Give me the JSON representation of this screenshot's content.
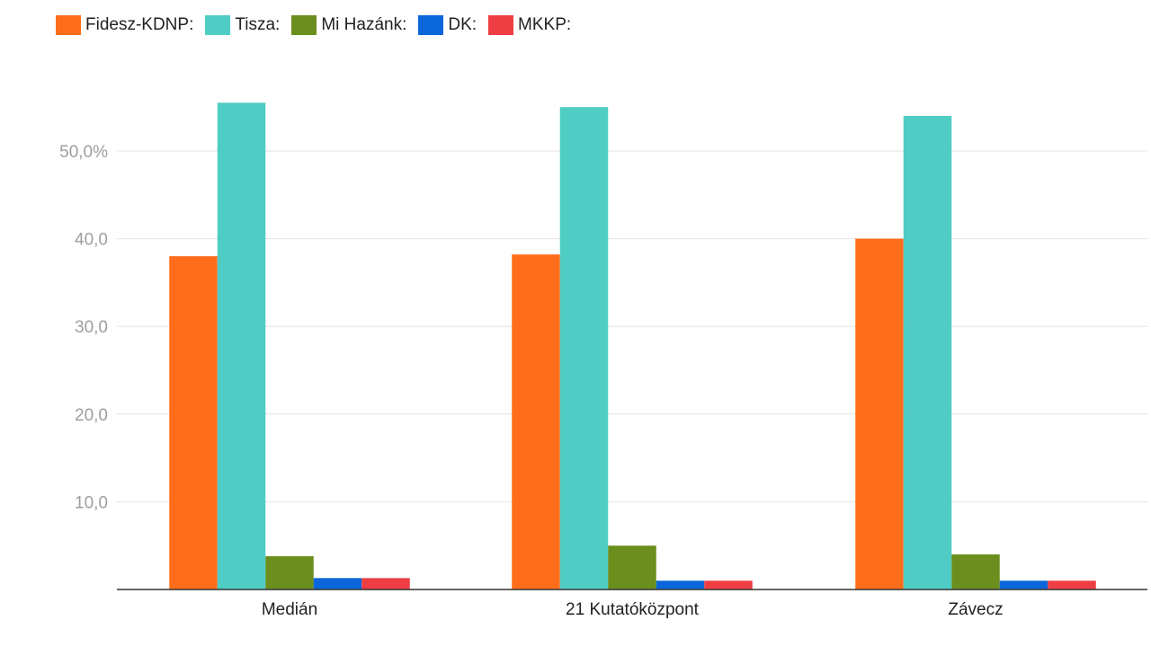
{
  "chart_data": {
    "type": "bar",
    "title": "",
    "xlabel": "",
    "ylabel": "",
    "categories": [
      "Medián",
      "21 Kutatóközpont",
      "Závecz"
    ],
    "series": [
      {
        "name": "Fidesz-KDNP:",
        "color": "#ff6d1a",
        "values": [
          38,
          38.2,
          40
        ]
      },
      {
        "name": "Tisza:",
        "color": "#4fcdc4",
        "values": [
          55.5,
          55,
          54
        ]
      },
      {
        "name": "Mi Hazánk:",
        "color": "#6b8e1e",
        "values": [
          3.8,
          5,
          4
        ]
      },
      {
        "name": "DK:",
        "color": "#0b67d9",
        "values": [
          1.3,
          1,
          1
        ]
      },
      {
        "name": "MKKP:",
        "color": "#ef3e43",
        "values": [
          1.3,
          1,
          1
        ]
      }
    ],
    "ylim": [
      0,
      55.5
    ],
    "yticks": [
      10,
      20,
      30,
      40,
      50
    ],
    "ytick_labels": [
      "10,0",
      "20,0",
      "30,0",
      "40,0",
      "50,0%"
    ],
    "grid": true,
    "legend": "top-left"
  }
}
